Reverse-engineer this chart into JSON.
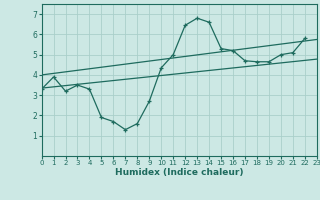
{
  "x": [
    0,
    1,
    2,
    3,
    4,
    5,
    6,
    7,
    8,
    9,
    10,
    11,
    12,
    13,
    14,
    15,
    16,
    17,
    18,
    19,
    20,
    21,
    22,
    23
  ],
  "y_curve": [
    3.3,
    3.9,
    3.2,
    3.5,
    3.3,
    1.9,
    1.7,
    1.3,
    1.6,
    2.7,
    4.35,
    5.0,
    6.45,
    6.8,
    6.6,
    5.3,
    5.2,
    4.7,
    4.65,
    4.65,
    5.0,
    5.1,
    5.8,
    null
  ],
  "line_color": "#1e6b5e",
  "bg_color": "#cce8e4",
  "grid_color": "#aacfca",
  "xlabel": "Humidex (Indice chaleur)",
  "xlim": [
    0,
    23
  ],
  "ylim": [
    0,
    7.5
  ],
  "yticks": [
    1,
    2,
    3,
    4,
    5,
    6,
    7
  ],
  "xticks": [
    0,
    1,
    2,
    3,
    4,
    5,
    6,
    7,
    8,
    9,
    10,
    11,
    12,
    13,
    14,
    15,
    16,
    17,
    18,
    19,
    20,
    21,
    22,
    23
  ],
  "line1_x": [
    0,
    23
  ],
  "line1_y": [
    3.35,
    4.78
  ],
  "line2_x": [
    0,
    23
  ],
  "line2_y": [
    4.0,
    5.75
  ]
}
